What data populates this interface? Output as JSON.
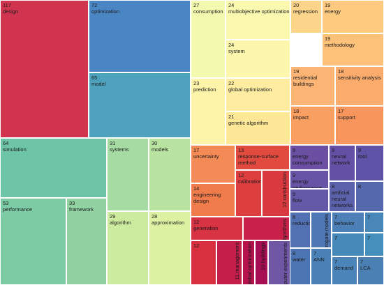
{
  "chart_data": {
    "type": "treemap",
    "items": [
      {
        "label": "design",
        "value": 117,
        "color": "#d0344f"
      },
      {
        "label": "optimization",
        "value": 72,
        "color": "#4a86c4"
      },
      {
        "label": "model",
        "value": 65,
        "color": "#4fa2bd"
      },
      {
        "label": "simulation",
        "value": 64,
        "color": "#6ec4a7"
      },
      {
        "label": "performance",
        "value": 53,
        "color": "#7ccba4"
      },
      {
        "label": "framework",
        "value": 33,
        "color": "#91d2a3"
      },
      {
        "label": "systems",
        "value": 31,
        "color": "#a6dba4"
      },
      {
        "label": "models",
        "value": 30,
        "color": "#b9e3a1"
      },
      {
        "label": "algorithm",
        "value": 29,
        "color": "#cceb9f"
      },
      {
        "label": "approximation",
        "value": 28,
        "color": "#dcf2a2"
      },
      {
        "label": "consumption",
        "value": 27,
        "color": "#f3f9ae"
      },
      {
        "label": "multiobjective optimization",
        "value": 24,
        "color": "#fbf8af"
      },
      {
        "label": "system",
        "value": 24,
        "color": "#fdf6ad"
      },
      {
        "label": "prediction",
        "value": 23,
        "color": "#fef4a9"
      },
      {
        "label": "global optimization",
        "value": 22,
        "color": "#feeda1"
      },
      {
        "label": "genetic algorithm",
        "value": 21,
        "color": "#fee797"
      },
      {
        "label": "regression",
        "value": 20,
        "color": "#fdd58a"
      },
      {
        "label": "energy",
        "value": 19,
        "color": "#fdca7f"
      },
      {
        "label": "methodology",
        "value": 19,
        "color": "#fdc17a"
      },
      {
        "label": "residential buildings",
        "value": 19,
        "color": "#fcb574"
      },
      {
        "label": "sensitivity analysis",
        "value": 18,
        "color": "#fbac6d"
      },
      {
        "label": "impact",
        "value": 18,
        "color": "#f99f62"
      },
      {
        "label": "support",
        "value": 17,
        "color": "#f7955c"
      },
      {
        "label": "uncertainty",
        "value": 17,
        "color": "#f48a55"
      },
      {
        "label": "response-surface method",
        "value": 13,
        "color": "#e04a3f"
      },
      {
        "label": "engineering design",
        "value": 14,
        "color": "#f07c4c"
      },
      {
        "label": "calibration",
        "value": 12,
        "color": "#dd3e3e"
      },
      {
        "label": "construction",
        "value": 12,
        "color": "#d93a40"
      },
      {
        "label": "generation",
        "value": 12,
        "color": "#d73343"
      },
      {
        "label": "algorithms",
        "value": 10,
        "color": "#c82049"
      },
      {
        "label": "",
        "value": 12,
        "color": "#d8303e"
      },
      {
        "label": "management",
        "value": 11,
        "color": "#c41e4a"
      },
      {
        "label": "global optimization",
        "value": 10,
        "color": "#b6134d"
      },
      {
        "label": "buildings",
        "value": 10,
        "color": "#a60d52"
      },
      {
        "label": "computer experiments",
        "value": 9,
        "color": "#6f57a5"
      },
      {
        "label": "energy consumption",
        "value": 9,
        "color": "#6a4fa3"
      },
      {
        "label": "neural network",
        "value": 9,
        "color": "#6450a4"
      },
      {
        "label": "tool",
        "value": 9,
        "color": "#5e53a6"
      },
      {
        "label": "energy performance",
        "value": 9,
        "color": "#6754a6"
      },
      {
        "label": "flow",
        "value": 9,
        "color": "#6259a8"
      },
      {
        "label": "artificial neural networks",
        "value": 8,
        "color": "#5b62ab"
      },
      {
        "label": "",
        "value": 8,
        "color": "#5568ae"
      },
      {
        "label": "reduction",
        "value": 8,
        "color": "#5271b2"
      },
      {
        "label": "surrogate models",
        "value": 8,
        "color": "#4f77b4"
      },
      {
        "label": "behavior",
        "value": 7,
        "color": "#4c80b7"
      },
      {
        "label": "",
        "value": 7,
        "color": "#4a87b9"
      },
      {
        "label": "water",
        "value": 8,
        "color": "#4d74b2"
      },
      {
        "label": "ANN",
        "value": 7,
        "color": "#4a82b7"
      },
      {
        "label": "",
        "value": 7,
        "color": "#4689b9"
      },
      {
        "label": "",
        "value": 7,
        "color": "#448fbb"
      },
      {
        "label": "demand",
        "value": 7,
        "color": "#4a84b8"
      },
      {
        "label": "LCA",
        "value": 7,
        "color": "#4b80b5"
      }
    ]
  }
}
